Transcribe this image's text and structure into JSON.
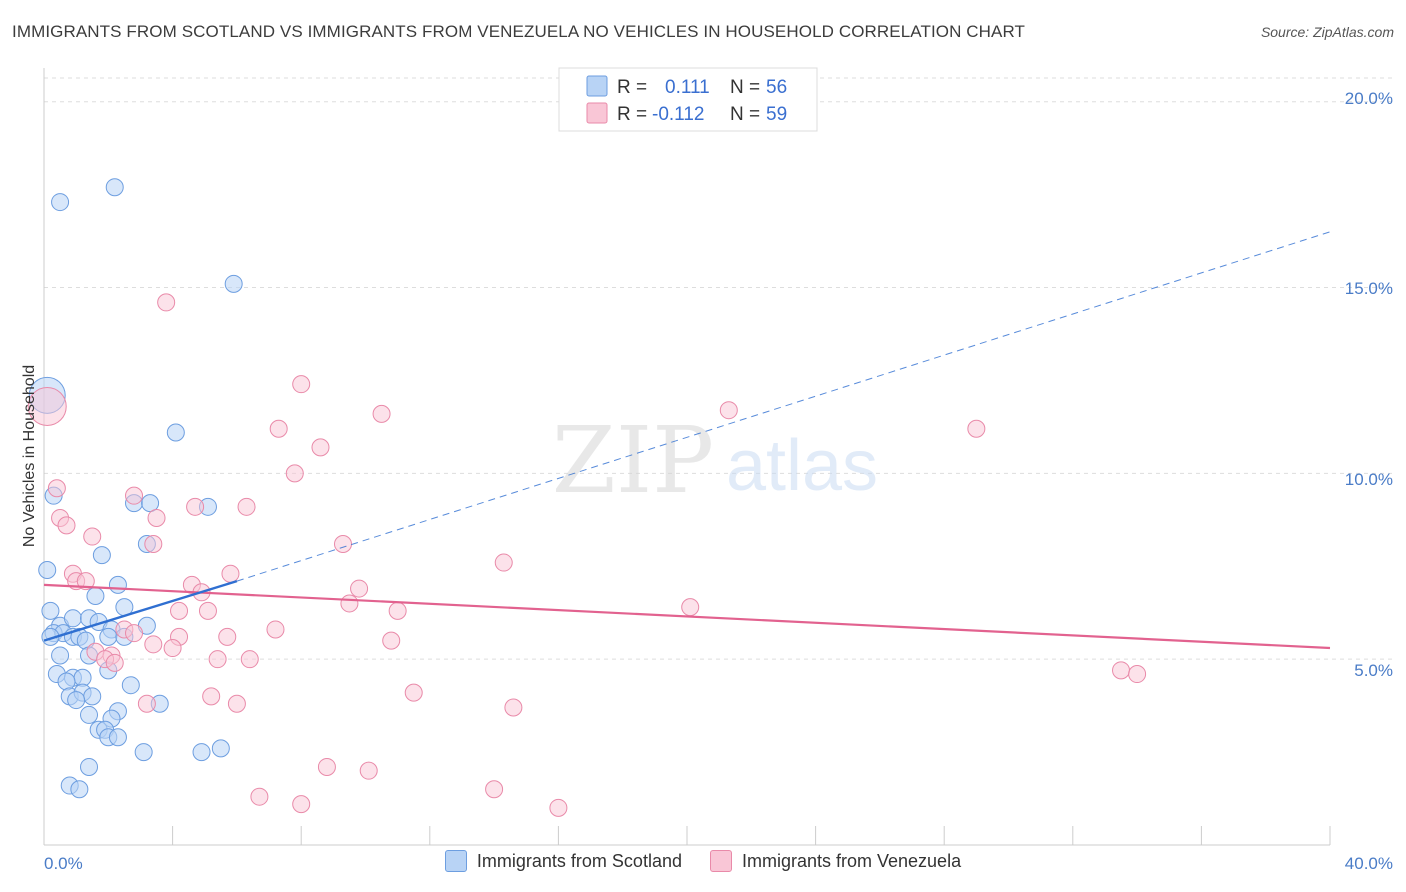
{
  "title": "IMMIGRANTS FROM SCOTLAND VS IMMIGRANTS FROM VENEZUELA NO VEHICLES IN HOUSEHOLD CORRELATION CHART",
  "source": "Source: ZipAtlas.com",
  "watermark": {
    "zip": "ZIP",
    "atlas": "atlas"
  },
  "colors": {
    "scotland_fill": "#b8d3f5",
    "scotland_stroke": "#6d9ee0",
    "scotland_line": "#2f6fd1",
    "venezuela_fill": "#f9c6d6",
    "venezuela_stroke": "#e98aa9",
    "venezuela_line": "#e2628f",
    "grid": "#dddddd",
    "axis_label": "#4a7cc7"
  },
  "legend": {
    "rows": [
      {
        "r_label": "R =",
        "r_value": "0.111",
        "n_label": "N =",
        "n_value": "56"
      },
      {
        "r_label": "R =",
        "r_value": "-0.112",
        "n_label": "N =",
        "n_value": "59"
      }
    ]
  },
  "bottom_legend": {
    "scotland": "Immigrants from Scotland",
    "venezuela": "Immigrants from Venezuela"
  },
  "chart_data": {
    "type": "scatter",
    "title": "IMMIGRANTS FROM SCOTLAND VS IMMIGRANTS FROM VENEZUELA NO VEHICLES IN HOUSEHOLD CORRELATION CHART",
    "xlabel": "",
    "ylabel": "No Vehicles in Household",
    "xlim": [
      0,
      40
    ],
    "ylim": [
      0,
      20.8
    ],
    "x_tick_labels": [
      "0.0%",
      "40.0%"
    ],
    "y_ticks": [
      5,
      10,
      15,
      20
    ],
    "y_tick_labels": [
      "5.0%",
      "10.0%",
      "15.0%",
      "20.0%"
    ],
    "grid": true,
    "series": [
      {
        "name": "Immigrants from Scotland",
        "points": [
          [
            0.1,
            12.1
          ],
          [
            0.5,
            17.3
          ],
          [
            2.2,
            17.7
          ],
          [
            5.9,
            15.1
          ],
          [
            4.1,
            11.1
          ],
          [
            0.3,
            9.4
          ],
          [
            2.8,
            9.2
          ],
          [
            3.3,
            9.2
          ],
          [
            5.1,
            9.1
          ],
          [
            3.2,
            8.1
          ],
          [
            0.1,
            7.4
          ],
          [
            1.8,
            7.8
          ],
          [
            2.3,
            7.0
          ],
          [
            1.6,
            6.7
          ],
          [
            0.2,
            6.3
          ],
          [
            2.5,
            6.4
          ],
          [
            0.5,
            5.9
          ],
          [
            0.9,
            6.1
          ],
          [
            1.4,
            6.1
          ],
          [
            1.7,
            6.0
          ],
          [
            2.1,
            5.8
          ],
          [
            3.2,
            5.9
          ],
          [
            0.3,
            5.7
          ],
          [
            0.6,
            5.7
          ],
          [
            0.9,
            5.6
          ],
          [
            1.1,
            5.6
          ],
          [
            2.0,
            5.6
          ],
          [
            2.5,
            5.6
          ],
          [
            0.2,
            5.6
          ],
          [
            1.3,
            5.5
          ],
          [
            0.5,
            5.1
          ],
          [
            1.4,
            5.1
          ],
          [
            2.0,
            4.7
          ],
          [
            0.4,
            4.6
          ],
          [
            0.9,
            4.5
          ],
          [
            1.2,
            4.5
          ],
          [
            2.7,
            4.3
          ],
          [
            0.7,
            4.4
          ],
          [
            0.8,
            4.0
          ],
          [
            1.2,
            4.1
          ],
          [
            1.5,
            4.0
          ],
          [
            1.0,
            3.9
          ],
          [
            3.6,
            3.8
          ],
          [
            1.4,
            3.5
          ],
          [
            2.3,
            3.6
          ],
          [
            2.1,
            3.4
          ],
          [
            1.7,
            3.1
          ],
          [
            1.9,
            3.1
          ],
          [
            2.0,
            2.9
          ],
          [
            2.3,
            2.9
          ],
          [
            3.1,
            2.5
          ],
          [
            4.9,
            2.5
          ],
          [
            5.5,
            2.6
          ],
          [
            1.4,
            2.1
          ],
          [
            0.8,
            1.6
          ],
          [
            1.1,
            1.5
          ]
        ],
        "trend": {
          "x": [
            0,
            6.0
          ],
          "y": [
            5.5,
            7.1
          ]
        },
        "trend_extension": {
          "x": [
            6.0,
            40
          ],
          "y": [
            7.1,
            16.5
          ]
        }
      },
      {
        "name": "Immigrants from Venezuela",
        "points": [
          [
            0.1,
            11.8
          ],
          [
            3.8,
            14.6
          ],
          [
            8.0,
            12.4
          ],
          [
            10.5,
            11.6
          ],
          [
            21.3,
            11.7
          ],
          [
            29.0,
            11.2
          ],
          [
            7.3,
            11.2
          ],
          [
            8.6,
            10.7
          ],
          [
            7.8,
            10.0
          ],
          [
            0.4,
            9.6
          ],
          [
            2.8,
            9.4
          ],
          [
            4.7,
            9.1
          ],
          [
            6.3,
            9.1
          ],
          [
            0.5,
            8.8
          ],
          [
            3.5,
            8.8
          ],
          [
            0.7,
            8.6
          ],
          [
            1.5,
            8.3
          ],
          [
            3.4,
            8.1
          ],
          [
            9.3,
            8.1
          ],
          [
            14.3,
            7.6
          ],
          [
            5.8,
            7.3
          ],
          [
            0.9,
            7.3
          ],
          [
            1.0,
            7.1
          ],
          [
            1.3,
            7.1
          ],
          [
            4.6,
            7.0
          ],
          [
            4.9,
            6.8
          ],
          [
            9.8,
            6.9
          ],
          [
            9.5,
            6.5
          ],
          [
            11.0,
            6.3
          ],
          [
            20.1,
            6.4
          ],
          [
            4.2,
            6.3
          ],
          [
            5.1,
            6.3
          ],
          [
            2.5,
            5.8
          ],
          [
            2.8,
            5.7
          ],
          [
            7.2,
            5.8
          ],
          [
            5.7,
            5.6
          ],
          [
            4.2,
            5.6
          ],
          [
            3.4,
            5.4
          ],
          [
            10.8,
            5.5
          ],
          [
            4.0,
            5.3
          ],
          [
            1.6,
            5.2
          ],
          [
            2.1,
            5.1
          ],
          [
            1.9,
            5.0
          ],
          [
            2.2,
            4.9
          ],
          [
            5.4,
            5.0
          ],
          [
            6.4,
            5.0
          ],
          [
            33.5,
            4.7
          ],
          [
            34.0,
            4.6
          ],
          [
            11.5,
            4.1
          ],
          [
            5.2,
            4.0
          ],
          [
            3.2,
            3.8
          ],
          [
            6.0,
            3.8
          ],
          [
            14.6,
            3.7
          ],
          [
            8.8,
            2.1
          ],
          [
            10.1,
            2.0
          ],
          [
            6.7,
            1.3
          ],
          [
            8.0,
            1.1
          ],
          [
            14.0,
            1.5
          ],
          [
            16.0,
            1.0
          ]
        ],
        "trend": {
          "x": [
            0,
            40
          ],
          "y": [
            7.0,
            5.3
          ]
        }
      }
    ],
    "legend": [
      {
        "name": "Immigrants from Scotland",
        "R": 0.111,
        "N": 56
      },
      {
        "name": "Immigrants from Venezuela",
        "R": -0.112,
        "N": 59
      }
    ]
  }
}
